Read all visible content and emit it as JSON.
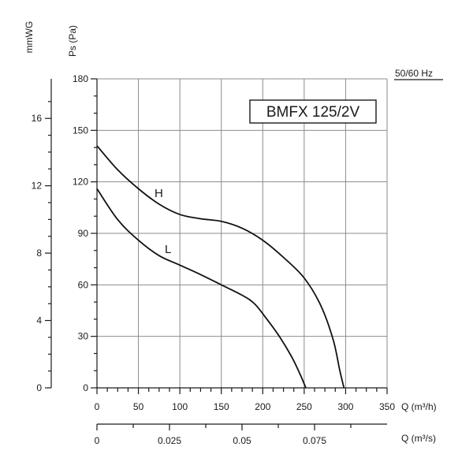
{
  "chart_data": {
    "type": "line",
    "model_label": "BMFX 125/2V",
    "frequency_label": "50/60 Hz",
    "y_axis": {
      "label": "Ps (Pa)",
      "range": [
        0,
        180
      ],
      "ticks": [
        0,
        30,
        60,
        90,
        120,
        150,
        180
      ]
    },
    "y2_axis": {
      "label": "mmWG",
      "range": [
        0,
        18.35
      ],
      "ticks": [
        0,
        4,
        8,
        12,
        16
      ]
    },
    "x_axis": {
      "label": "Q (m³/h)",
      "range": [
        0,
        350
      ],
      "ticks": [
        0,
        50,
        100,
        150,
        200,
        250,
        300,
        350
      ]
    },
    "x2_axis": {
      "label": "Q (m³/s)",
      "ticks": [
        0,
        0.025,
        0.05,
        0.075
      ],
      "tick_labels": [
        "0",
        "0.025",
        "0.05",
        "0.075"
      ]
    },
    "grid": true,
    "series": [
      {
        "name": "H",
        "points": [
          [
            0,
            141
          ],
          [
            25,
            127
          ],
          [
            50,
            116
          ],
          [
            75,
            107
          ],
          [
            100,
            101
          ],
          [
            125,
            98.5
          ],
          [
            150,
            97
          ],
          [
            175,
            93
          ],
          [
            200,
            86
          ],
          [
            225,
            76
          ],
          [
            250,
            64
          ],
          [
            270,
            48
          ],
          [
            285,
            28
          ],
          [
            293,
            10
          ],
          [
            298,
            0
          ]
        ]
      },
      {
        "name": "L",
        "points": [
          [
            0,
            116
          ],
          [
            25,
            98
          ],
          [
            50,
            86
          ],
          [
            75,
            77
          ],
          [
            100,
            71.5
          ],
          [
            125,
            66
          ],
          [
            150,
            60
          ],
          [
            175,
            54
          ],
          [
            190,
            49
          ],
          [
            205,
            40
          ],
          [
            220,
            30
          ],
          [
            235,
            18
          ],
          [
            245,
            8
          ],
          [
            252,
            0
          ]
        ]
      }
    ]
  }
}
